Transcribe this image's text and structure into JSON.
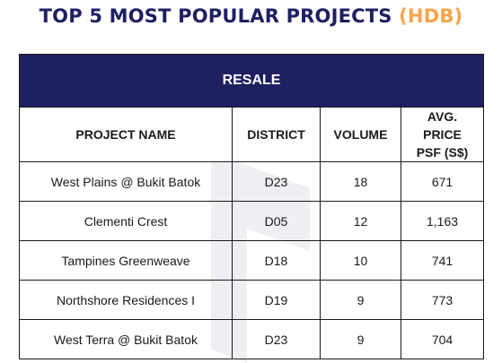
{
  "title": {
    "main": "TOP 5 MOST POPULAR PROJECTS",
    "accent": "(HDB)"
  },
  "colors": {
    "navy": "#1e2061",
    "accent": "#f5a54a"
  },
  "table": {
    "banner": "RESALE",
    "headers": {
      "project_name": "PROJECT NAME",
      "district": "DISTRICT",
      "volume": "VOLUME",
      "avg_price_line1": "AVG. PRICE",
      "avg_price_line2": "PSF (S$)"
    },
    "rows": [
      {
        "project": "West Plains @ Bukit Batok",
        "district": "D23",
        "volume": "18",
        "price": "671"
      },
      {
        "project": "Clementi Crest",
        "district": "D05",
        "volume": "12",
        "price": "1,163"
      },
      {
        "project": "Tampines Greenweave",
        "district": "D18",
        "volume": "10",
        "price": "741"
      },
      {
        "project": "Northshore Residences I",
        "district": "D19",
        "volume": "9",
        "price": "773"
      },
      {
        "project": "West Terra @ Bukit Batok",
        "district": "D23",
        "volume": "9",
        "price": "704"
      }
    ]
  }
}
